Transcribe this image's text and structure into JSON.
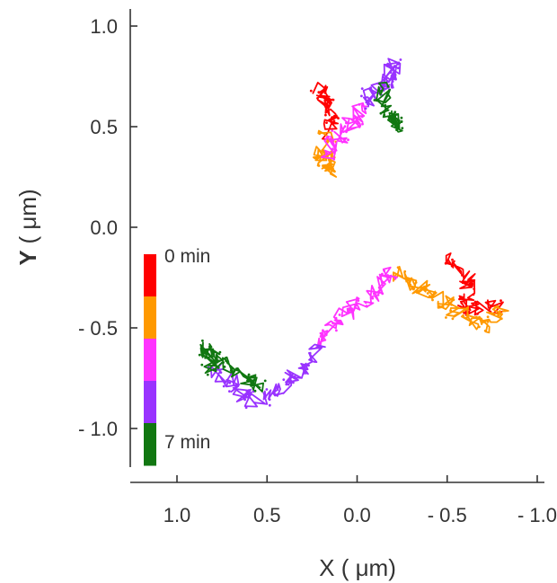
{
  "chart_data": {
    "type": "line",
    "title": "",
    "xlabel": "X",
    "xlabel_unit": "( μm)",
    "ylabel": "Y",
    "ylabel_unit": "( μm)",
    "xlim": [
      1.0,
      -1.0
    ],
    "ylim": [
      -1.2,
      1.05
    ],
    "x_reversed": true,
    "grid": false,
    "x_ticks": [
      1.0,
      0.5,
      0.0,
      -0.5,
      -1.0
    ],
    "x_tick_labels": [
      "1.0",
      "0.5",
      "0.0",
      "- 0.5",
      "- 1.0"
    ],
    "y_ticks": [
      1.0,
      0.5,
      0.0,
      -0.5,
      -1.0
    ],
    "y_tick_labels": [
      "1.0",
      "0.5",
      "0.0",
      "- 0.5",
      "- 1.0"
    ],
    "colorbar": {
      "placement": "left-inside",
      "top_label": "0 min",
      "bottom_label": "7 min",
      "colors": [
        "#ff0000",
        "#ff9900",
        "#ff33ff",
        "#9933ff",
        "#117711"
      ]
    },
    "series": [
      {
        "colors": [
          "#ff0000",
          "#ff9900",
          "#ff33ff",
          "#9933ff",
          "#117711"
        ],
        "x": [
          0.2,
          0.18,
          0.14,
          0.2,
          0.16,
          0.16,
          0.04,
          0.0,
          -0.16,
          -0.2,
          -0.14,
          -0.22,
          -0.2
        ],
        "y": [
          0.7,
          0.62,
          0.52,
          0.38,
          0.28,
          0.38,
          0.5,
          0.58,
          0.72,
          0.8,
          0.62,
          0.5,
          0.55
        ]
      },
      {
        "colors": [
          "#ff0000",
          "#ff9900",
          "#ff33ff",
          "#9933ff",
          "#117711"
        ],
        "x": [
          -0.5,
          -0.62,
          -0.6,
          -0.8,
          -0.7,
          -0.45,
          -0.2,
          -0.05,
          0.1,
          0.22,
          0.38,
          0.58,
          0.8,
          0.85,
          0.62,
          0.55
        ],
        "y": [
          -0.15,
          -0.25,
          -0.4,
          -0.4,
          -0.5,
          -0.36,
          -0.22,
          -0.36,
          -0.44,
          -0.6,
          -0.78,
          -0.86,
          -0.7,
          -0.6,
          -0.74,
          -0.8
        ]
      }
    ]
  }
}
